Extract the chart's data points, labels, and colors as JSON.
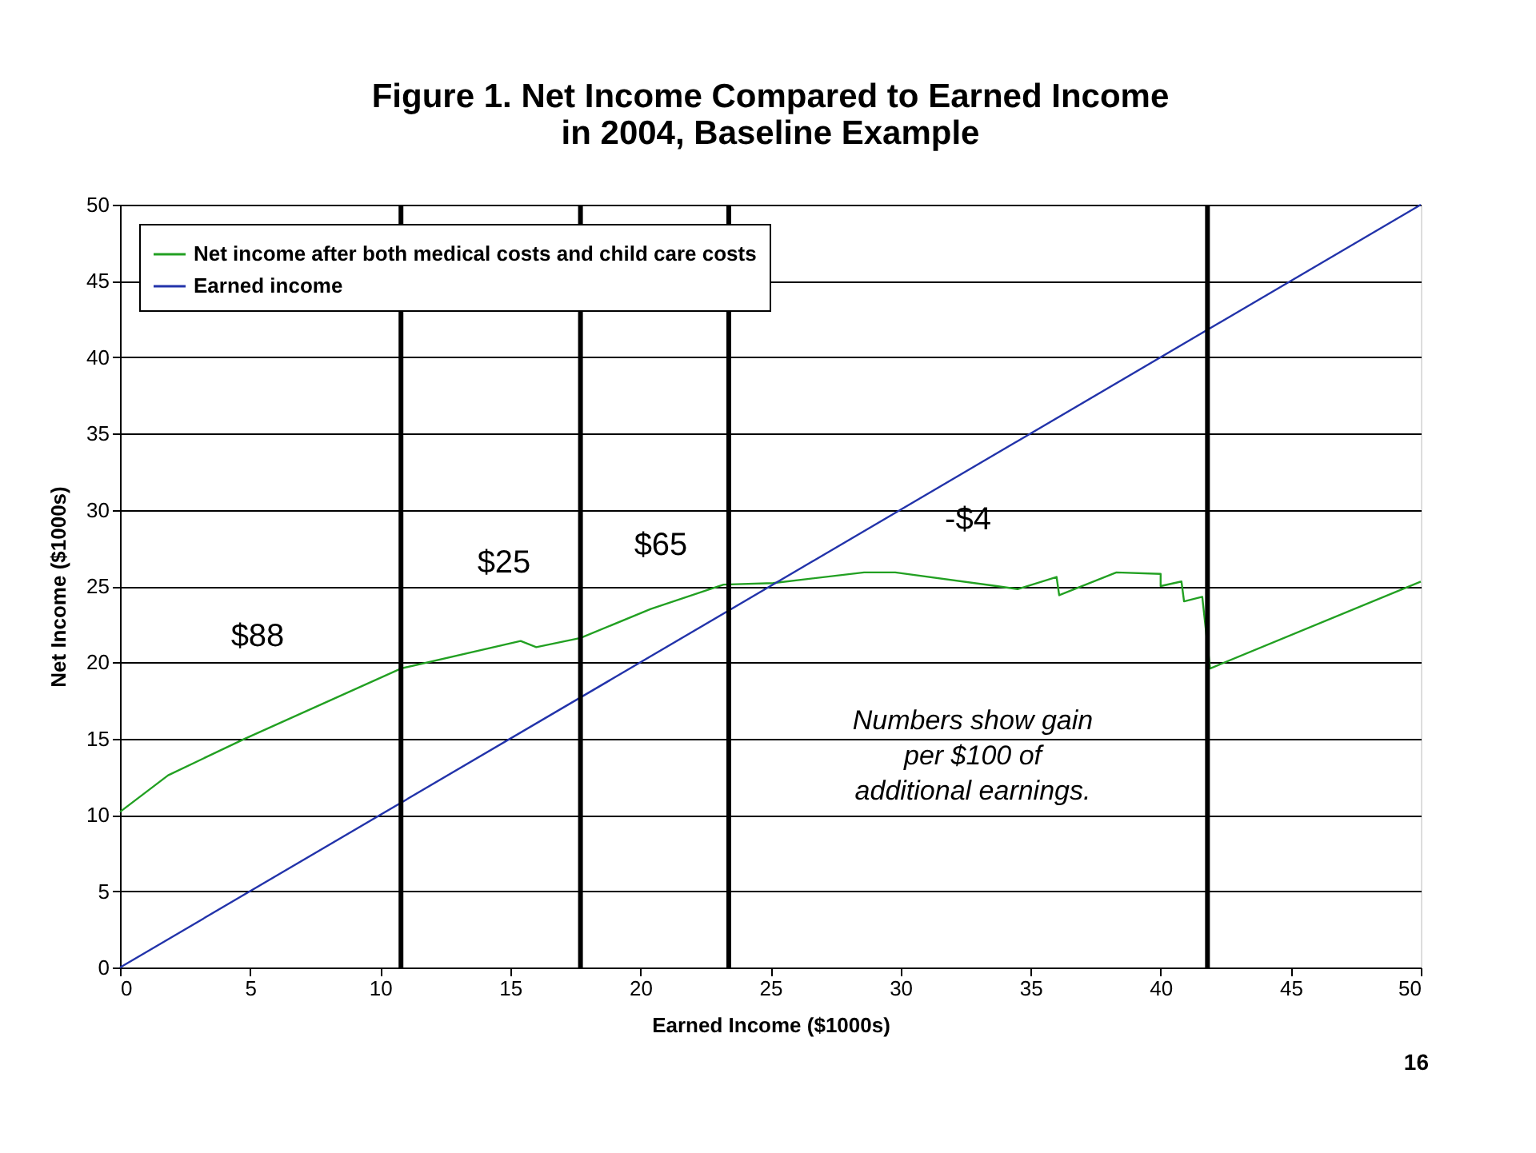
{
  "chart_data": {
    "type": "line",
    "title": [
      "Figure 1.  Net Income Compared to Earned Income",
      "in 2004, Baseline Example"
    ],
    "xlabel": "Earned Income ($1000s)",
    "ylabel": "Net Income ($1000s)",
    "xlim": [
      0,
      50
    ],
    "xticks": [
      0,
      5,
      10,
      15,
      20,
      25,
      30,
      35,
      40,
      45,
      50
    ],
    "ylim": [
      0,
      50
    ],
    "yticks": [
      0,
      5,
      10,
      15,
      20,
      25,
      30,
      35,
      40,
      45,
      50
    ],
    "grid": "y",
    "legend": "top left",
    "marker": "none",
    "line_style": "solid",
    "series": [
      {
        "name": "Net income after both medical costs and child care costs",
        "color": "#22a022",
        "x": [
          0,
          1.85,
          4.8,
          10.8,
          15.4,
          16.0,
          17.7,
          20.4,
          23.2,
          25.1,
          28.6,
          29.8,
          33.7,
          34.5,
          36.0,
          36.1,
          38.3,
          40.0,
          40.0,
          40.8,
          40.9,
          41.6,
          41.9,
          50
        ],
        "values": [
          10.2,
          12.6,
          15.0,
          19.6,
          21.4,
          21.0,
          21.6,
          23.5,
          25.1,
          25.2,
          25.9,
          25.9,
          25.0,
          24.8,
          25.6,
          24.4,
          25.9,
          25.8,
          25.0,
          25.3,
          24.0,
          24.3,
          19.6,
          25.3
        ]
      },
      {
        "name": "Earned income",
        "color": "#2233aa",
        "x": [
          0,
          50
        ],
        "values": [
          0,
          50
        ]
      }
    ],
    "ref_lines": [
      {
        "axis": "x",
        "value": 10.8,
        "color": "#000000"
      },
      {
        "axis": "x",
        "value": 17.7,
        "color": "#000000"
      },
      {
        "axis": "x",
        "value": 23.4,
        "color": "#000000"
      },
      {
        "axis": "x",
        "value": 41.8,
        "color": "#000000"
      }
    ],
    "annotations": [
      "$88",
      "$25",
      "$65",
      "-$4",
      "Numbers show gain\nper $100 of\nadditional earnings.",
      "16"
    ]
  }
}
